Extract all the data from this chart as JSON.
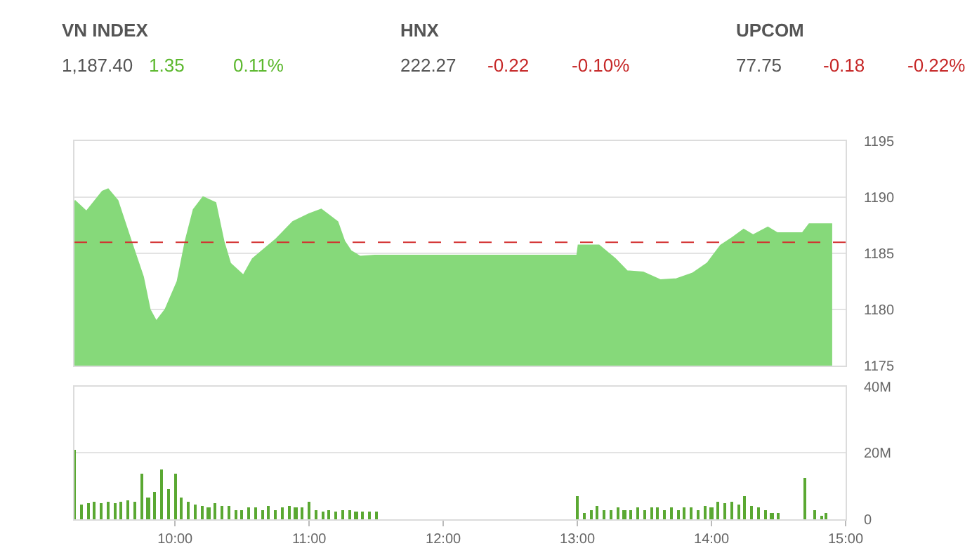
{
  "chart_data": [
    {
      "type": "other",
      "annotations": [
        "VN INDEX",
        "1,187.40",
        "1.35",
        "0.11%",
        "HNX",
        "222.27",
        "-0.22",
        "-0.10%",
        "UPCOM",
        "77.75",
        "-0.18",
        "-0.22%"
      ],
      "colors": [
        "#555555",
        "#555555",
        "#5cb82e",
        "#5cb82e",
        "#555555",
        "#555555",
        "#c62828",
        "#c62828",
        "#555555",
        "#555555",
        "#c62828",
        "#c62828"
      ]
    },
    {
      "type": "area",
      "series": [
        {
          "color": "#86d97a",
          "x": [
            9.25,
            9.34,
            9.46,
            9.5,
            9.57,
            9.67,
            9.76,
            9.81,
            9.86,
            9.93,
            10.02,
            10.08,
            10.14,
            10.21,
            10.3,
            10.36,
            10.41,
            10.51,
            10.58,
            10.65,
            10.75,
            10.88,
            11.0,
            11.09,
            11.21,
            11.26,
            11.31,
            11.38,
            11.49,
            13.0,
            13.01,
            13.16,
            13.28,
            13.37,
            13.49,
            13.62,
            13.74,
            13.86,
            13.97,
            14.07,
            14.16,
            14.24,
            14.31,
            14.42,
            14.49,
            14.68,
            14.73,
            14.9
          ],
          "values": [
            1189.7,
            1188.7,
            1190.5,
            1190.7,
            1189.7,
            1186.1,
            1182.9,
            1180.0,
            1178.9,
            1180.0,
            1182.5,
            1186.1,
            1188.9,
            1190.0,
            1189.5,
            1186.1,
            1184.1,
            1183.0,
            1184.5,
            1185.2,
            1186.2,
            1187.8,
            1188.5,
            1188.9,
            1187.8,
            1186.1,
            1185.2,
            1184.7,
            1184.8,
            1184.8,
            1185.7,
            1185.7,
            1184.5,
            1183.4,
            1183.3,
            1182.6,
            1182.7,
            1183.2,
            1184.1,
            1185.7,
            1186.4,
            1187.1,
            1186.6,
            1187.3,
            1186.8,
            1186.8,
            1187.6,
            1187.6
          ]
        }
      ],
      "ref_lines": [
        {
          "axis": "y",
          "value": 1186,
          "color": "#d32f2f",
          "line_style": "dashed"
        }
      ],
      "xlim": [
        9.25,
        15
      ],
      "ylim": [
        1175,
        1195
      ],
      "yticks": [
        1175,
        1180,
        1185,
        1190,
        1195
      ],
      "grid": "y",
      "tick_labels": "y"
    },
    {
      "type": "bar",
      "series": [
        {
          "color": "#5aa832",
          "x": [
            9.25,
            9.3,
            9.35,
            9.4,
            9.45,
            9.5,
            9.55,
            9.6,
            9.65,
            9.7,
            9.75,
            9.8,
            9.85,
            9.9,
            9.95,
            10.0,
            10.05,
            10.1,
            10.15,
            10.2,
            10.25,
            10.3,
            10.35,
            10.4,
            10.45,
            10.5,
            10.55,
            10.6,
            10.65,
            10.7,
            10.75,
            10.8,
            10.85,
            10.9,
            10.95,
            11.0,
            11.05,
            11.1,
            11.15,
            11.2,
            11.25,
            11.3,
            11.35,
            11.4,
            11.45,
            11.5,
            13.0,
            13.05,
            13.1,
            13.15,
            13.2,
            13.25,
            13.3,
            13.35,
            13.4,
            13.45,
            13.5,
            13.55,
            13.6,
            13.65,
            13.7,
            13.75,
            13.8,
            13.85,
            13.9,
            13.95,
            14.0,
            14.05,
            14.1,
            14.15,
            14.2,
            14.25,
            14.3,
            14.35,
            14.4,
            14.45,
            14.5,
            14.7,
            14.77,
            14.82,
            14.85
          ],
          "values": [
            20.8,
            4.5,
            5,
            5.5,
            5,
            5.5,
            5,
            5.5,
            6,
            5.5,
            14,
            6.5,
            8.3,
            15,
            9.3,
            14,
            6.5,
            5.5,
            4.5,
            4,
            3.5,
            5,
            4,
            4,
            3,
            3,
            3.5,
            3.5,
            3,
            4,
            3,
            3.5,
            4,
            3.5,
            3.5,
            5.5,
            3,
            2.5,
            3,
            2.5,
            3,
            3,
            2.5,
            2.5,
            2.5,
            2.5,
            7,
            2,
            3,
            4,
            3,
            3,
            3.5,
            3,
            3,
            3.5,
            3,
            3.5,
            3.5,
            3,
            3.5,
            3,
            3.5,
            3.5,
            3,
            4,
            3.5,
            5.5,
            5,
            5.5,
            4.5,
            7,
            4,
            3.5,
            3,
            2,
            2,
            12.5,
            3,
            1,
            2
          ]
        }
      ],
      "xlim": [
        9.25,
        15
      ],
      "xticks": [
        {
          "value": 10,
          "label": "10:00"
        },
        {
          "value": 11,
          "label": "11:00"
        },
        {
          "value": 12,
          "label": "12:00"
        },
        {
          "value": 13,
          "label": "13:00"
        },
        {
          "value": 14,
          "label": "14:00"
        },
        {
          "value": 15,
          "label": "15:00"
        }
      ],
      "ylim": [
        0,
        40
      ],
      "yticks": [
        0,
        {
          "value": 20,
          "label": "20M"
        },
        {
          "value": 40,
          "label": "40M"
        }
      ],
      "grid": "y"
    }
  ]
}
